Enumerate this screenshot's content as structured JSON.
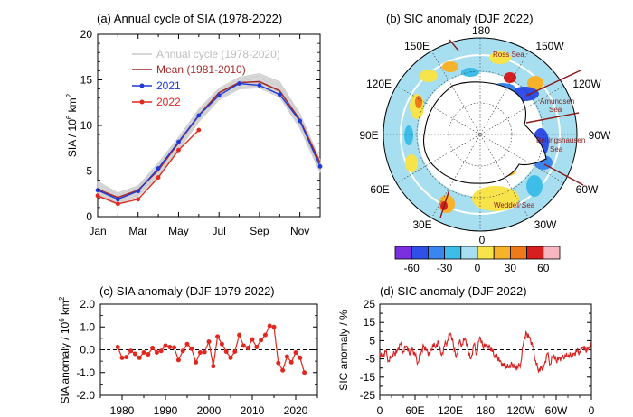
{
  "chart_data": [
    {
      "id": "a",
      "type": "line",
      "title": "(a) Annual cycle of SIA (1978-2022)",
      "ylabel": "SIA / 10",
      "ylabel_sup": "6",
      "ylabel_unit": "km",
      "ylabel_unit_sup": "2",
      "ylim": [
        0,
        20
      ],
      "yticks": [
        "0",
        "5",
        "10",
        "15",
        "20"
      ],
      "x_tick_labels": [
        "Jan",
        "Mar",
        "May",
        "Jul",
        "Sep",
        "Nov"
      ],
      "legend_placement": "top-right",
      "annual_cycle_label": "Annual cycle (1978-2020)",
      "ensemble_spread": {
        "lower": [
          2.2,
          1.3,
          2.2,
          4.4,
          7.3,
          10.4,
          12.8,
          14.0,
          14.1,
          13.1,
          9.7,
          4.8
        ],
        "upper": [
          3.9,
          2.6,
          3.4,
          5.9,
          8.7,
          11.8,
          14.1,
          15.3,
          15.7,
          14.8,
          11.3,
          6.3
        ]
      },
      "series": [
        {
          "name": "Mean (1981-2010)",
          "color": "#a52a2a",
          "values": [
            3.0,
            2.1,
            2.9,
            5.1,
            8.1,
            11.1,
            13.6,
            14.7,
            14.8,
            13.8,
            10.6,
            5.9
          ]
        },
        {
          "name": "2021",
          "color": "#1f3ad8",
          "values": [
            2.9,
            1.9,
            2.8,
            5.3,
            8.2,
            11.1,
            13.3,
            14.6,
            14.4,
            13.4,
            10.5,
            5.5
          ]
        },
        {
          "name": "2022",
          "color": "#e0281e",
          "values": [
            2.3,
            1.4,
            1.9,
            4.3,
            7.3,
            9.5
          ]
        }
      ]
    },
    {
      "id": "b",
      "type": "heatmap",
      "title": "(b) SIC anomaly (DJF 2022)",
      "longitude_labels": [
        "180",
        "150W",
        "120W",
        "90W",
        "60W",
        "30W",
        "0",
        "30E",
        "60E",
        "90E",
        "120E",
        "150E"
      ],
      "region_labels": [
        "Ross Sea",
        "Amundsen",
        "Sea",
        "Bellingshausen",
        "Sea",
        "Weddell Sea"
      ],
      "colorbar_ticks": [
        "-60",
        "-30",
        "0",
        "30",
        "60"
      ],
      "colorbar_colors": [
        "#7a2fe0",
        "#2f4fe6",
        "#3a86ee",
        "#3dbde8",
        "#a7dff0",
        "#f7e34a",
        "#f6b22a",
        "#ef7a1a",
        "#d61f1f",
        "#f7b6c0"
      ],
      "land_color": "#ffffff"
    },
    {
      "id": "c",
      "type": "line",
      "title": "(c) SIA anomaly (DJF 1979-2022)",
      "ylabel": "SIA anomaly / 10",
      "ylabel_sup": "6",
      "ylabel_unit": "km",
      "ylabel_unit_sup": "2",
      "ylim": [
        -2.0,
        2.0
      ],
      "yticks": [
        "-2.0",
        "-1.0",
        "0.0",
        "1.0",
        "2.0"
      ],
      "x_ticks": [
        "1980",
        "1990",
        "2000",
        "2010",
        "2020"
      ],
      "x": [
        1979,
        1980,
        1981,
        1982,
        1983,
        1984,
        1985,
        1986,
        1987,
        1988,
        1989,
        1990,
        1991,
        1992,
        1993,
        1994,
        1995,
        1996,
        1997,
        1998,
        1999,
        2000,
        2001,
        2002,
        2003,
        2004,
        2005,
        2006,
        2007,
        2008,
        2009,
        2010,
        2011,
        2012,
        2013,
        2014,
        2015,
        2016,
        2017,
        2018,
        2019,
        2020,
        2021,
        2022
      ],
      "values": [
        0.12,
        -0.35,
        -0.32,
        -0.05,
        -0.18,
        -0.35,
        -0.12,
        -0.2,
        0.08,
        -0.12,
        -0.05,
        0.18,
        0.12,
        0.1,
        -0.45,
        -0.05,
        0.25,
        0.05,
        -0.55,
        -0.12,
        -0.1,
        0.35,
        -0.72,
        0.58,
        0.25,
        -0.08,
        -0.35,
        -0.08,
        0.65,
        0.18,
        0.08,
        0.45,
        0.12,
        0.42,
        0.65,
        1.05,
        1.0,
        -0.58,
        -0.9,
        -0.3,
        -0.55,
        -0.12,
        -0.35,
        -1.0
      ],
      "series_color": "#e0281e"
    },
    {
      "id": "d",
      "type": "line",
      "title": "(d) SIC anomaly (DJF 2022)",
      "ylabel": "SIC anomaly / %",
      "ylim": [
        -25,
        25
      ],
      "yticks": [
        "-25",
        "-20",
        "-15",
        "-10",
        "-5",
        "0",
        "5",
        "10",
        "15",
        "20",
        "25"
      ],
      "ytick_labels": [
        "-25",
        "-15",
        "-5",
        "5",
        "15",
        "25"
      ],
      "x_ticks": [
        "0",
        "60E",
        "120E",
        "180",
        "120W",
        "60W",
        "0"
      ],
      "x": [
        0,
        5,
        10,
        15,
        20,
        25,
        30,
        35,
        40,
        45,
        50,
        55,
        60,
        65,
        70,
        75,
        80,
        85,
        90,
        95,
        100,
        105,
        110,
        115,
        120,
        125,
        130,
        135,
        140,
        145,
        150,
        155,
        160,
        165,
        170,
        175,
        180,
        185,
        190,
        195,
        200,
        205,
        210,
        215,
        220,
        225,
        230,
        235,
        240,
        245,
        250,
        255,
        260,
        265,
        270,
        275,
        280,
        285,
        290,
        295,
        300,
        305,
        310,
        315,
        320,
        325,
        330,
        335,
        340,
        345,
        350,
        355,
        360
      ],
      "values": [
        -2,
        -3,
        -1,
        -6,
        -4,
        -2,
        0,
        3,
        -1,
        2,
        -2,
        1,
        -3,
        -7,
        -2,
        2,
        0,
        -3,
        3,
        1,
        4,
        -3,
        2,
        5,
        9,
        3,
        -4,
        4,
        3,
        6,
        0,
        -5,
        3,
        -2,
        7,
        2,
        3,
        1,
        1,
        -4,
        -4,
        -6,
        -9,
        -9,
        -10,
        -8,
        -9,
        -10,
        -7,
        5,
        9,
        7,
        2,
        -6,
        -12,
        -10,
        -8,
        -2,
        -8,
        -3,
        -6,
        -4,
        -5,
        -3,
        -4,
        -3,
        -2,
        -1,
        -1,
        1,
        0,
        1,
        3
      ],
      "series_color": "#d62020"
    }
  ]
}
